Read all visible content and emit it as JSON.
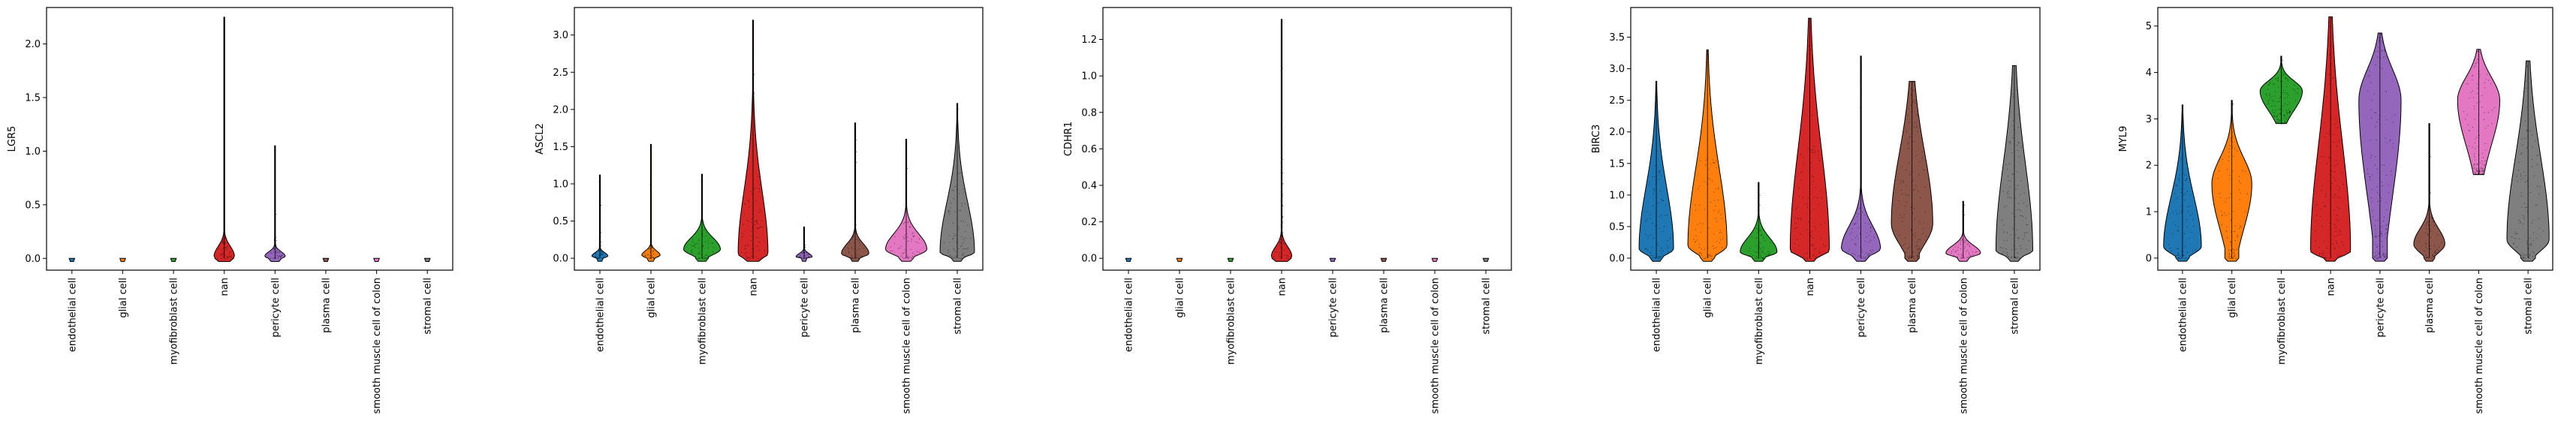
{
  "figure": {
    "categories": [
      "endothelial cell",
      "glial cell",
      "myofibroblast cell",
      "nan",
      "pericyte cell",
      "plasma cell",
      "smooth muscle cell of colon",
      "stromal cell"
    ],
    "palette": {
      "endothelial cell": "#1f77b4",
      "glial cell": "#ff7f0e",
      "myofibroblast cell": "#2ca02c",
      "nan": "#d62728",
      "pericyte cell": "#9467bd",
      "plasma cell": "#8c564b",
      "smooth muscle cell of colon": "#e377c2",
      "stromal cell": "#7f7f7f"
    }
  },
  "chart_data": [
    {
      "type": "violin",
      "ylabel": "LGR5",
      "ylim": [
        -0.11,
        2.34
      ],
      "yticks": [
        0.0,
        0.5,
        1.0,
        1.5,
        2.0
      ],
      "ytick_labels": [
        "0.0",
        "0.5",
        "1.0",
        "1.5",
        "2.0"
      ],
      "series": [
        {
          "category": "endothelial cell",
          "max": 0.0,
          "dense_to": 0.0,
          "bulge": 0.02,
          "width": 0.35,
          "points": 0.0
        },
        {
          "category": "glial cell",
          "max": 0.0,
          "dense_to": 0.0,
          "bulge": 0.02,
          "width": 0.35,
          "points": 0.0
        },
        {
          "category": "myofibroblast cell",
          "max": 0.0,
          "dense_to": 0.0,
          "bulge": 0.02,
          "width": 0.35,
          "points": 0.0
        },
        {
          "category": "nan",
          "max": 2.25,
          "dense_to": 0.05,
          "bulge": 0.02,
          "width": 0.45,
          "points": 0.2
        },
        {
          "category": "pericyte cell",
          "max": 1.05,
          "dense_to": 0.05,
          "bulge": 0.02,
          "width": 0.45,
          "points": 0.2
        },
        {
          "category": "plasma cell",
          "max": 0.0,
          "dense_to": 0.0,
          "bulge": 0.02,
          "width": 0.35,
          "points": 0.0
        },
        {
          "category": "smooth muscle cell of colon",
          "max": 0.0,
          "dense_to": 0.0,
          "bulge": 0.02,
          "width": 0.35,
          "points": 0.0
        },
        {
          "category": "stromal cell",
          "max": 0.0,
          "dense_to": 0.0,
          "bulge": 0.02,
          "width": 0.35,
          "points": 0.0
        }
      ]
    },
    {
      "type": "violin",
      "ylabel": "ASCL2",
      "ylim": [
        -0.16,
        3.37
      ],
      "yticks": [
        0.0,
        0.5,
        1.0,
        1.5,
        2.0,
        2.5,
        3.0
      ],
      "ytick_labels": [
        "0.0",
        "0.5",
        "1.0",
        "1.5",
        "2.0",
        "2.5",
        "3.0"
      ],
      "series": [
        {
          "category": "endothelial cell",
          "max": 1.12,
          "dense_to": 0.1,
          "bulge": 0.03,
          "width": 0.35,
          "points": 0.2
        },
        {
          "category": "glial cell",
          "max": 1.53,
          "dense_to": 0.1,
          "bulge": 0.04,
          "width": 0.4,
          "points": 0.2
        },
        {
          "category": "myofibroblast cell",
          "max": 1.13,
          "dense_to": 0.4,
          "bulge": 0.12,
          "width": 0.8,
          "points": 0.4
        },
        {
          "category": "nan",
          "max": 3.2,
          "dense_to": 1.6,
          "bulge": 0.06,
          "width": 0.65,
          "points": 1.0
        },
        {
          "category": "pericyte cell",
          "max": 0.42,
          "dense_to": 0.1,
          "bulge": 0.02,
          "width": 0.35,
          "points": 0.2
        },
        {
          "category": "plasma cell",
          "max": 1.82,
          "dense_to": 0.3,
          "bulge": 0.06,
          "width": 0.6,
          "points": 0.4
        },
        {
          "category": "smooth muscle cell of colon",
          "max": 1.6,
          "dense_to": 0.5,
          "bulge": 0.12,
          "width": 0.9,
          "points": 0.5
        },
        {
          "category": "stromal cell",
          "max": 2.08,
          "dense_to": 1.3,
          "bulge": 0.08,
          "width": 0.75,
          "points": 1.0
        }
      ]
    },
    {
      "type": "violin",
      "ylabel": "CDHR1",
      "ylim": [
        -0.065,
        1.375
      ],
      "yticks": [
        0.0,
        0.2,
        0.4,
        0.6,
        0.8,
        1.0,
        1.2
      ],
      "ytick_labels": [
        "0.0",
        "0.2",
        "0.4",
        "0.6",
        "0.8",
        "1.0",
        "1.2"
      ],
      "series": [
        {
          "category": "endothelial cell",
          "max": 0.0,
          "dense_to": 0.0,
          "bulge": 0.01,
          "width": 0.35,
          "points": 0.0
        },
        {
          "category": "glial cell",
          "max": 0.0,
          "dense_to": 0.0,
          "bulge": 0.01,
          "width": 0.35,
          "points": 0.0
        },
        {
          "category": "myofibroblast cell",
          "max": 0.0,
          "dense_to": 0.0,
          "bulge": 0.01,
          "width": 0.35,
          "points": 0.0
        },
        {
          "category": "nan",
          "max": 1.31,
          "dense_to": 0.02,
          "bulge": 0.01,
          "width": 0.45,
          "points": 0.6
        },
        {
          "category": "pericyte cell",
          "max": 0.0,
          "dense_to": 0.0,
          "bulge": 0.01,
          "width": 0.35,
          "points": 0.0
        },
        {
          "category": "plasma cell",
          "max": 0.0,
          "dense_to": 0.0,
          "bulge": 0.01,
          "width": 0.35,
          "points": 0.0
        },
        {
          "category": "smooth muscle cell of colon",
          "max": 0.0,
          "dense_to": 0.0,
          "bulge": 0.01,
          "width": 0.35,
          "points": 0.0
        },
        {
          "category": "stromal cell",
          "max": 0.0,
          "dense_to": 0.0,
          "bulge": 0.01,
          "width": 0.35,
          "points": 0.0
        }
      ]
    },
    {
      "type": "violin",
      "ylabel": "BIRC3",
      "ylim": [
        -0.19,
        3.97
      ],
      "yticks": [
        0.0,
        0.5,
        1.0,
        1.5,
        2.0,
        2.5,
        3.0,
        3.5
      ],
      "ytick_labels": [
        "0.0",
        "0.5",
        "1.0",
        "1.5",
        "2.0",
        "2.5",
        "3.0",
        "3.5"
      ],
      "series": [
        {
          "category": "endothelial cell",
          "max": 2.8,
          "dense_to": 1.9,
          "bulge": 0.15,
          "width": 0.75,
          "points": 1.4
        },
        {
          "category": "glial cell",
          "max": 3.3,
          "dense_to": 2.4,
          "bulge": 0.2,
          "width": 0.85,
          "points": 1.6
        },
        {
          "category": "myofibroblast cell",
          "max": 1.2,
          "dense_to": 0.5,
          "bulge": 0.1,
          "width": 0.8,
          "points": 0.5
        },
        {
          "category": "nan",
          "max": 3.8,
          "dense_to": 3.0,
          "bulge": 0.12,
          "width": 0.85,
          "points": 1.8
        },
        {
          "category": "pericyte cell",
          "max": 3.2,
          "dense_to": 0.8,
          "bulge": 0.15,
          "width": 0.85,
          "points": 0.8
        },
        {
          "category": "plasma cell",
          "max": 2.8,
          "dense_to": 2.6,
          "bulge": 0.55,
          "width": 0.9,
          "points": 2.6
        },
        {
          "category": "smooth muscle cell of colon",
          "max": 0.9,
          "dense_to": 0.3,
          "bulge": 0.08,
          "width": 0.75,
          "points": 0.3
        },
        {
          "category": "stromal cell",
          "max": 3.05,
          "dense_to": 2.6,
          "bulge": 0.12,
          "width": 0.8,
          "points": 2.0
        }
      ]
    },
    {
      "type": "violin",
      "ylabel": "MYL9",
      "ylim": [
        -0.26,
        5.4
      ],
      "yticks": [
        0,
        1,
        2,
        3,
        4,
        5
      ],
      "ytick_labels": [
        "0",
        "1",
        "2",
        "3",
        "4",
        "5"
      ],
      "series": [
        {
          "category": "endothelial cell",
          "max": 3.3,
          "dense_to": 2.2,
          "bulge": 0.25,
          "width": 0.85,
          "points": 1.8
        },
        {
          "category": "glial cell",
          "max": 3.4,
          "dense_to": 2.6,
          "bulge": 1.6,
          "width": 0.9,
          "points": 2.6
        },
        {
          "category": "myofibroblast cell",
          "min": 2.9,
          "max": 4.35,
          "dense_to": 4.0,
          "bulge": 3.6,
          "width": 0.95,
          "points": 4.0
        },
        {
          "category": "nan",
          "max": 5.2,
          "dense_to": 4.3,
          "bulge": 0.15,
          "width": 0.9,
          "points": 3.2
        },
        {
          "category": "pericyte cell",
          "max": 4.85,
          "dense_to": 4.6,
          "bulge": 3.4,
          "width": 0.95,
          "points": 4.6
        },
        {
          "category": "plasma cell",
          "max": 2.9,
          "dense_to": 0.9,
          "bulge": 0.3,
          "width": 0.7,
          "points": 0.9
        },
        {
          "category": "smooth muscle cell of colon",
          "min": 1.8,
          "max": 4.5,
          "dense_to": 4.3,
          "bulge": 3.4,
          "width": 0.95,
          "points": 4.0
        },
        {
          "category": "stromal cell",
          "max": 4.25,
          "dense_to": 3.6,
          "bulge": 0.4,
          "width": 0.95,
          "points": 2.8
        }
      ]
    }
  ]
}
